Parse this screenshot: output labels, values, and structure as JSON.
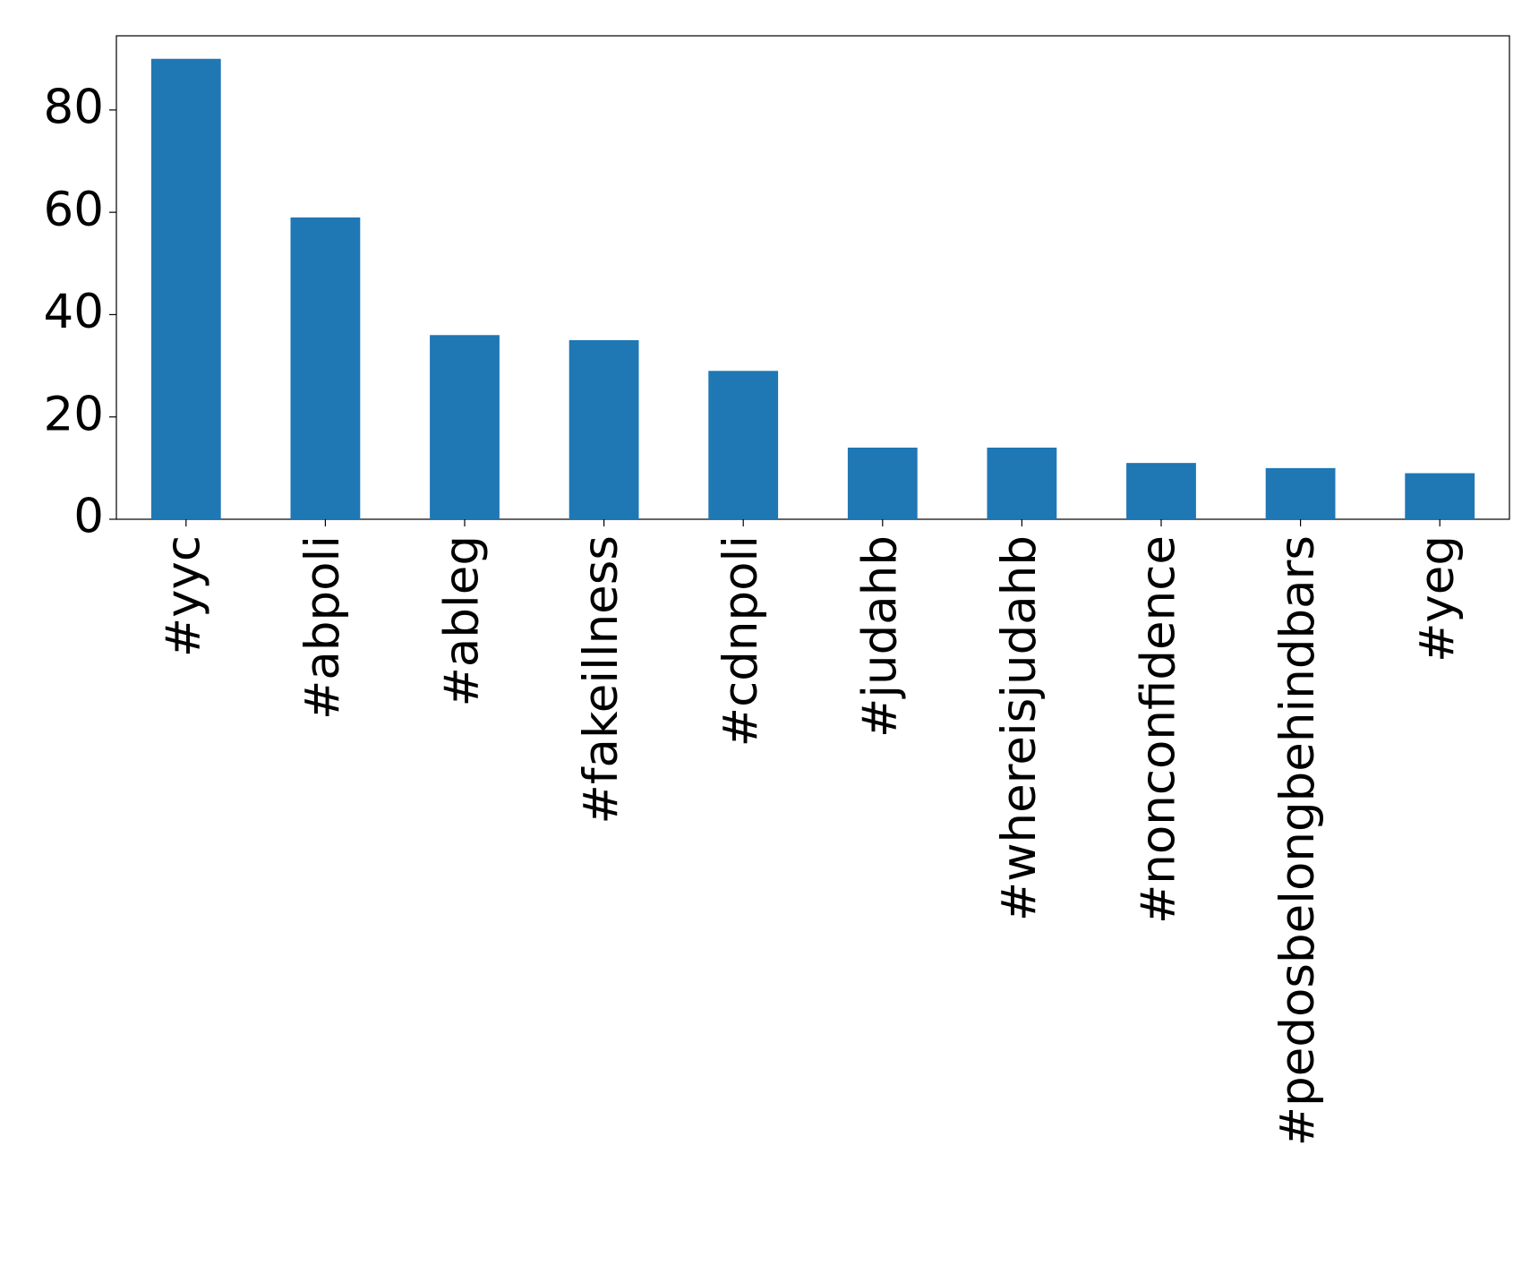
{
  "chart_data": {
    "type": "bar",
    "categories": [
      "#yyc",
      "#abpoli",
      "#ableg",
      "#fakeillness",
      "#cdnpoli",
      "#judahb",
      "#whereisjudahb",
      "#nonconfidence",
      "#pedosbelongbehindbars",
      "#yeg"
    ],
    "values": [
      90,
      59,
      36,
      35,
      29,
      14,
      14,
      11,
      10,
      9
    ],
    "color": "#1f77b4",
    "ylim": [
      0,
      94.5
    ],
    "yticks": [
      0,
      20,
      40,
      60,
      80
    ],
    "grid": false
  }
}
